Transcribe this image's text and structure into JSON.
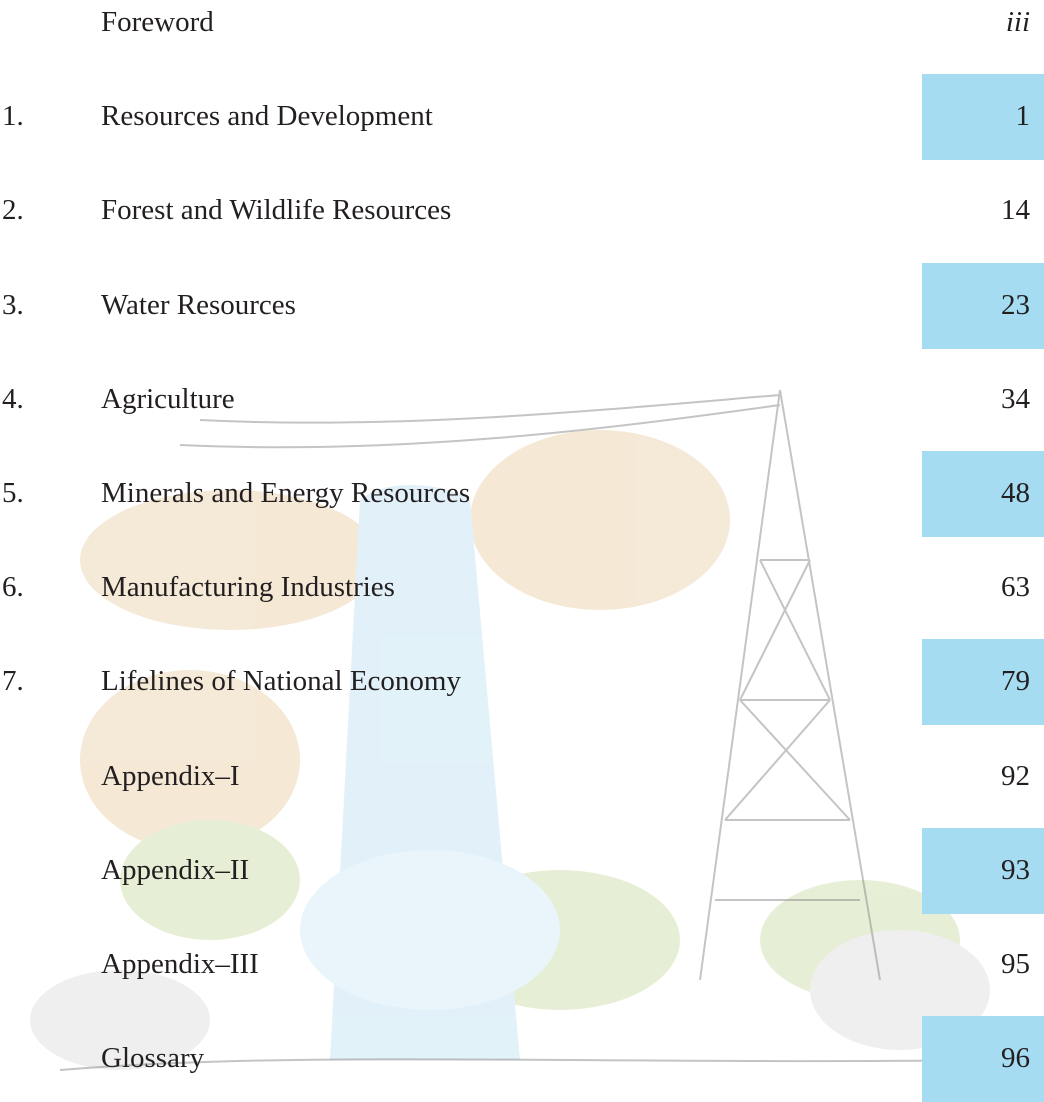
{
  "toc": {
    "entries": [
      {
        "number": null,
        "title": "Foreword",
        "page": "iii",
        "highlighted": false
      },
      {
        "number": "1.",
        "title": "Resources and Development",
        "page": "1",
        "highlighted": true
      },
      {
        "number": "2.",
        "title": "Forest and Wildlife Resources",
        "page": "14",
        "highlighted": false
      },
      {
        "number": "3.",
        "title": "Water Resources",
        "page": "23",
        "highlighted": true
      },
      {
        "number": "4.",
        "title": "Agriculture",
        "page": "34",
        "highlighted": false
      },
      {
        "number": "5.",
        "title": "Minerals and Energy Resources",
        "page": "48",
        "highlighted": true
      },
      {
        "number": "6.",
        "title": "Manufacturing Industries",
        "page": "63",
        "highlighted": false
      },
      {
        "number": "7.",
        "title": "Lifelines of National Economy",
        "page": "79",
        "highlighted": true
      },
      {
        "number": null,
        "title": "Appendix–I",
        "page": "92",
        "highlighted": false
      },
      {
        "number": null,
        "title": "Appendix–II",
        "page": "93",
        "highlighted": true
      },
      {
        "number": null,
        "title": "Appendix–III",
        "page": "95",
        "highlighted": false
      },
      {
        "number": null,
        "title": "Glossary",
        "page": "96",
        "highlighted": true
      }
    ],
    "highlight_color": "#a5dcf2"
  }
}
